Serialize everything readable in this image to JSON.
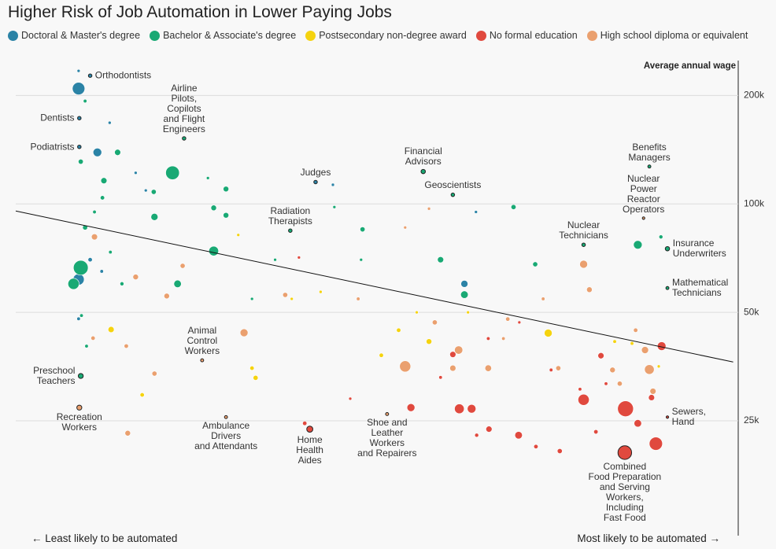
{
  "chart_data": {
    "type": "scatter",
    "title": "Higher Risk of Job Automation in Lower Paying Jobs",
    "y_label": "Average annual wage",
    "x_label_left": "← Least likely to be automated",
    "x_label_right": "Most likely to be automated →",
    "xlim": [
      0,
      1
    ],
    "ylim": [
      12000,
      250000
    ],
    "log_y": true,
    "grid": true,
    "yticks": [
      {
        "value": 25000,
        "label": "25k"
      },
      {
        "value": 50000,
        "label": "50k"
      },
      {
        "value": 100000,
        "label": "100k"
      },
      {
        "value": 200000,
        "label": "200k"
      }
    ],
    "trend": {
      "color": "#111111",
      "x": [
        0,
        0.993
      ],
      "y": [
        95600,
        36400
      ]
    },
    "series": [
      {
        "name": "Doctoral & Master's degree",
        "color": "#2b83a6",
        "x": [
          0.103,
          0.088,
          0.088,
          0.415,
          0.087,
          0.113,
          0.13,
          0.087,
          0.166,
          0.18,
          0.103,
          0.087,
          0.119,
          0.621,
          0.439,
          0.637,
          0.087
        ],
        "y": [
          227000,
          173000,
          144000,
          115000,
          209000,
          139000,
          168000,
          234000,
          122000,
          109000,
          70000,
          48000,
          65000,
          60000,
          113000,
          95000,
          61700
        ],
        "size": [
          20,
          20,
          20,
          20,
          250,
          120,
          15,
          15,
          15,
          15,
          30,
          20,
          20,
          80,
          15,
          15,
          200
        ],
        "labels": [
          "Orthodontists",
          "Dentists",
          "Podiatrists",
          "Judges",
          null,
          null,
          null,
          null,
          null,
          null,
          null,
          null,
          null,
          null,
          null,
          null,
          null
        ]
      },
      {
        "name": "Bachelor & Associate's degree",
        "color": "#19a974",
        "x": [
          0.233,
          0.38,
          0.564,
          0.605,
          0.786,
          0.877,
          0.902,
          0.902,
          0.09,
          0.096,
          0.141,
          0.217,
          0.191,
          0.291,
          0.266,
          0.192,
          0.274,
          0.291,
          0.224,
          0.274,
          0.48,
          0.441,
          0.588,
          0.689,
          0.621,
          0.719,
          0.861,
          0.893,
          0.096,
          0.12,
          0.09,
          0.109,
          0.131,
          0.147,
          0.098,
          0.091,
          0.327,
          0.359,
          0.478,
          0.09,
          0.08,
          0.122
        ],
        "y": [
          152000,
          84300,
          123000,
          106000,
          77000,
          127000,
          75100,
          58400,
          33300,
          193000,
          139000,
          122000,
          108000,
          110000,
          118000,
          92000,
          74000,
          93000,
          60000,
          97500,
          85000,
          98000,
          70000,
          98000,
          56000,
          68000,
          77000,
          81000,
          86000,
          104000,
          131000,
          95000,
          73500,
          60000,
          40300,
          49000,
          54500,
          70000,
          70000,
          66500,
          60000,
          116000
        ],
        "size": [
          20,
          20,
          30,
          20,
          20,
          15,
          30,
          15,
          40,
          20,
          60,
          300,
          40,
          50,
          15,
          80,
          150,
          50,
          90,
          50,
          40,
          15,
          60,
          40,
          90,
          40,
          120,
          25,
          40,
          30,
          40,
          20,
          20,
          25,
          20,
          20,
          15,
          15,
          15,
          350,
          200,
          60
        ],
        "labels": [
          "Airline\nPilots,\nCopilots\nand Flight\nEngineers",
          "Radiation\nTherapists",
          "Financial\nAdvisors",
          "Geoscientists",
          "Nuclear\nTechnicians",
          "Benefits\nManagers",
          "Insurance\nUnderwriters",
          "Mathematical\nTechnicians",
          "Preschool\nTeachers",
          null,
          null,
          null,
          null,
          null,
          null,
          null,
          null,
          null,
          null,
          null,
          null,
          null,
          null,
          null,
          null,
          null,
          null,
          null,
          null,
          null,
          null,
          null,
          null,
          null,
          null,
          null,
          null,
          null,
          null,
          null,
          null,
          null
        ]
      },
      {
        "name": "Postsecondary non-degree award",
        "color": "#f5d30f",
        "x": [
          0.132,
          0.175,
          0.332,
          0.327,
          0.572,
          0.53,
          0.506,
          0.737,
          0.853,
          0.308,
          0.382,
          0.422,
          0.555,
          0.626,
          0.829,
          0.89
        ],
        "y": [
          44800,
          29500,
          32900,
          35000,
          41500,
          44600,
          38000,
          43800,
          41000,
          82000,
          54500,
          57000,
          50000,
          50000,
          41500,
          35400
        ],
        "size": [
          60,
          30,
          40,
          30,
          50,
          30,
          30,
          100,
          20,
          15,
          15,
          15,
          15,
          15,
          20,
          15
        ]
      },
      {
        "name": "No formal education",
        "color": "#e0493e",
        "x": [
          0.407,
          0.843,
          0.902,
          0.894,
          0.844,
          0.886,
          0.786,
          0.614,
          0.631,
          0.547,
          0.696,
          0.655,
          0.753,
          0.72,
          0.638,
          0.81,
          0.861,
          0.88,
          0.4,
          0.463,
          0.605,
          0.654,
          0.781,
          0.817,
          0.392,
          0.697,
          0.741,
          0.803,
          0.588
        ],
        "y": [
          23700,
          20400,
          25600,
          40300,
          27000,
          21600,
          28600,
          27000,
          27000,
          27200,
          22800,
          23700,
          20600,
          21200,
          22800,
          37900,
          24600,
          29000,
          24600,
          28800,
          38200,
          42300,
          30600,
          31700,
          71000,
          46900,
          34600,
          23300,
          33000
        ],
        "size": [
          60,
          300,
          10,
          120,
          400,
          280,
          200,
          150,
          120,
          100,
          90,
          60,
          40,
          30,
          25,
          60,
          90,
          60,
          30,
          15,
          60,
          20,
          20,
          20,
          15,
          15,
          20,
          30,
          20
        ],
        "labels": [
          "Home\nHealth\nAides",
          "Combined\nFood Preparation\nand Serving\nWorkers,\nIncluding\nFast Food",
          "Sewers,\nHand",
          null,
          null,
          null,
          null,
          null,
          null,
          null,
          null,
          null,
          null,
          null,
          null,
          null,
          null,
          null,
          null,
          null,
          null,
          null,
          null,
          null,
          null,
          null,
          null,
          null,
          null
        ]
      },
      {
        "name": "High school diploma or equivalent",
        "color": "#eaa06f",
        "x": [
          0.869,
          0.258,
          0.291,
          0.514,
          0.088,
          0.539,
          0.613,
          0.654,
          0.605,
          0.786,
          0.794,
          0.877,
          0.871,
          0.316,
          0.209,
          0.166,
          0.155,
          0.192,
          0.153,
          0.231,
          0.373,
          0.58,
          0.681,
          0.751,
          0.836,
          0.882,
          0.109,
          0.107,
          0.572,
          0.539,
          0.474,
          0.73,
          0.826,
          0.858,
          0.675
        ],
        "y": [
          91300,
          36800,
          25600,
          26100,
          27200,
          35400,
          39300,
          35000,
          35000,
          68000,
          57800,
          34700,
          39300,
          43900,
          55500,
          62700,
          23100,
          33800,
          40300,
          67300,
          55900,
          46900,
          47900,
          35000,
          31700,
          30200,
          81000,
          42400,
          97000,
          86000,
          54500,
          54500,
          34600,
          44600,
          42300
        ],
        "size": [
          10,
          15,
          15,
          15,
          40,
          200,
          110,
          70,
          60,
          100,
          50,
          150,
          80,
          100,
          50,
          50,
          50,
          40,
          30,
          40,
          40,
          40,
          30,
          40,
          40,
          60,
          60,
          30,
          15,
          15,
          20,
          20,
          50,
          30,
          20
        ],
        "labels": [
          "Nuclear\nPower\nReactor\nOperators",
          "Animal\nControl\nWorkers",
          "Ambulance\nDrivers\nand Attendants",
          "Shoe and\nLeather\nWorkers\nand Repairers",
          "Recreation\nWorkers",
          null,
          null,
          null,
          null,
          null,
          null,
          null,
          null,
          null,
          null,
          null,
          null,
          null,
          null,
          null,
          null,
          null,
          null,
          null,
          null,
          null,
          null,
          null,
          null,
          null,
          null,
          null,
          null,
          null,
          null
        ]
      }
    ]
  }
}
